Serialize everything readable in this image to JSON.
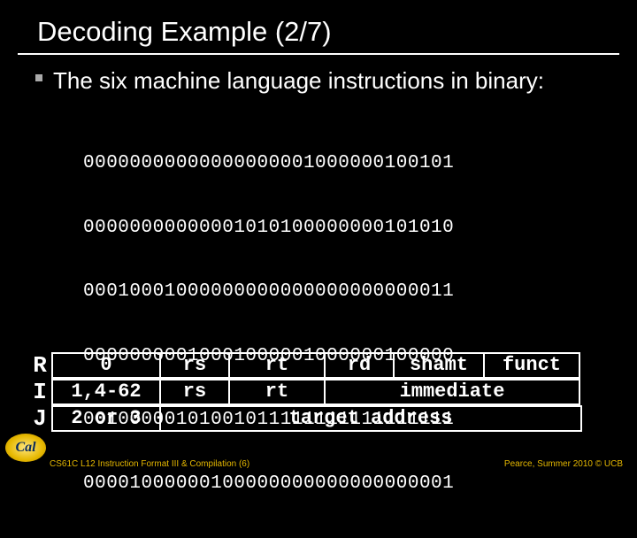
{
  "title": "Decoding Example (2/7)",
  "bullet_text": "The six machine language instructions in binary:",
  "binary_lines": [
    "00000000000000000001000000100101",
    "00000000000001010100000000101010",
    "00010001000000000000000000000011",
    "00000000010001000001000000100000",
    "00100000101001011111111111111111",
    "00001000000100000000000000000001"
  ],
  "formats": {
    "R": {
      "label": "R",
      "op": "0",
      "f1": "rs",
      "f2": "rt",
      "f3": "rd",
      "f4": "shamt",
      "f5": "funct"
    },
    "I": {
      "label": "I",
      "op": "1,4-62",
      "f1": "rs",
      "f2": "rt",
      "f3": "immediate"
    },
    "J": {
      "label": "J",
      "op": "2 or 3",
      "f1": "target address"
    }
  },
  "footer": {
    "left": "CS61C L12 Instruction Format III & Compilation (6)",
    "right": "Pearce, Summer 2010 © UCB",
    "logo_text": "Cal"
  },
  "colors": {
    "bg": "#000000",
    "text": "#ffffff",
    "accent": "#e6b800"
  }
}
